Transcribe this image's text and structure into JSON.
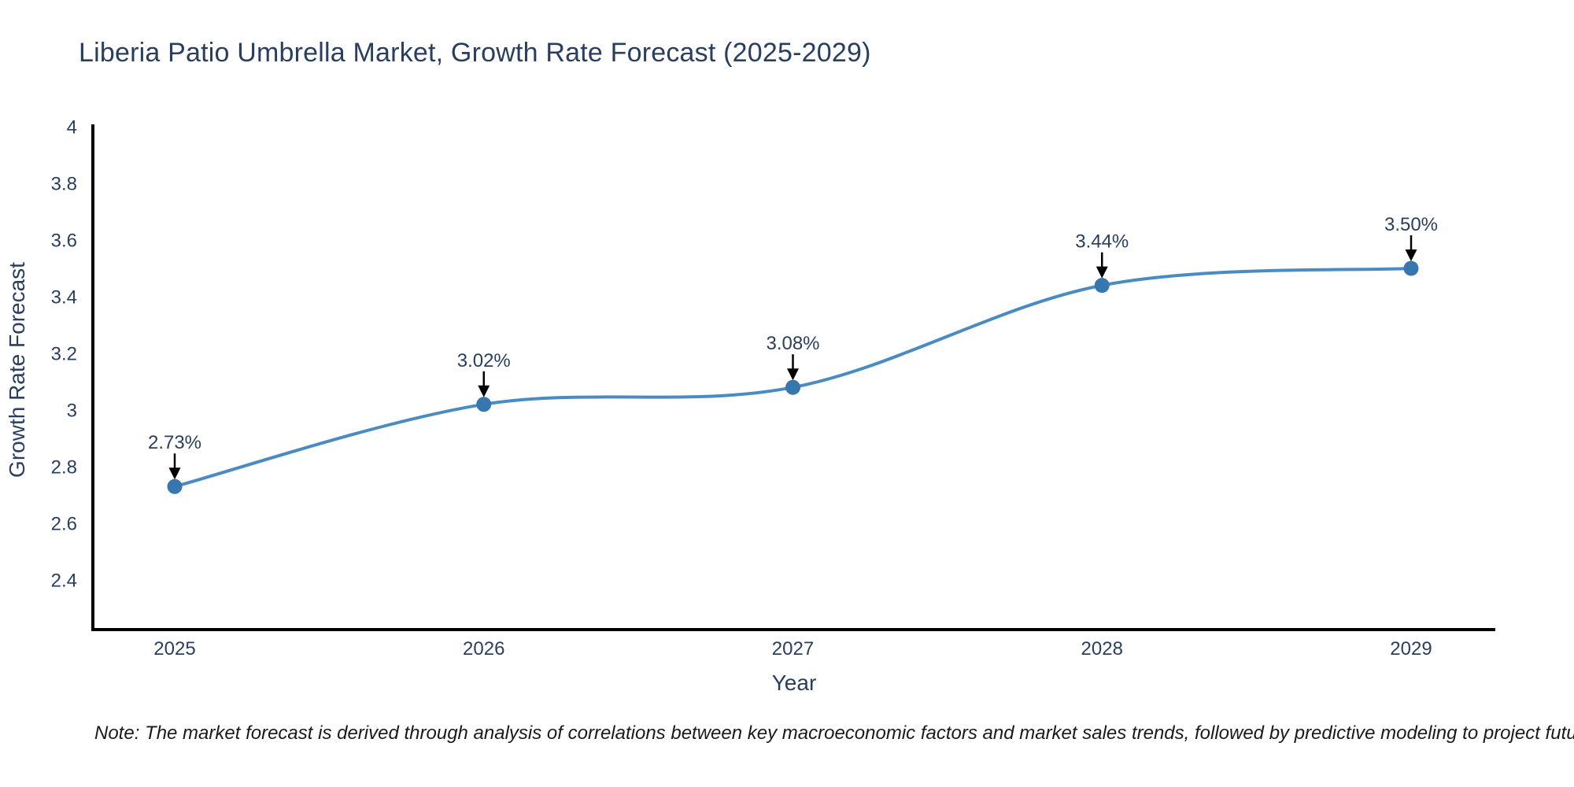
{
  "title": "Liberia Patio Umbrella Market, Growth Rate Forecast (2025-2029)",
  "note": "Note: The market forecast is derived through analysis of correlations between key macroeconomic factors and market sales trends, followed by predictive modeling to project future sales",
  "chart_data": {
    "type": "line",
    "line_shape": "spline",
    "x": [
      2025,
      2026,
      2027,
      2028,
      2029
    ],
    "series": [
      {
        "name": "Growth Rate Forecast",
        "values": [
          2.73,
          3.02,
          3.08,
          3.44,
          3.5
        ]
      }
    ],
    "point_labels": [
      "2.73%",
      "3.02%",
      "3.08%",
      "3.44%",
      "3.50%"
    ],
    "annotation_style": "black-arrow-above-point",
    "title": "Liberia Patio Umbrella Market, Growth Rate Forecast (2025-2029)",
    "xlabel": "Year",
    "ylabel": "Growth Rate Forecast",
    "xtick_labels": [
      "2025",
      "2026",
      "2027",
      "2028",
      "2029"
    ],
    "yticks": [
      4,
      3.8,
      3.6,
      3.4,
      3.2,
      3,
      2.8,
      2.6,
      2.4
    ],
    "ytick_labels": [
      "4",
      "3.8",
      "3.6",
      "3.4",
      "3.2",
      "3",
      "2.8",
      "2.6",
      "2.4"
    ],
    "ylim": [
      2.22,
      4.0
    ],
    "grid": false,
    "legend": "none",
    "plot_background": "#ffffff",
    "colors": {
      "line": "#4a8bc2",
      "marker": "#3776ae",
      "arrow": "#000000",
      "axis": "#000000",
      "text": "#2a3f5f",
      "note_text": "#1a1a1a"
    }
  }
}
